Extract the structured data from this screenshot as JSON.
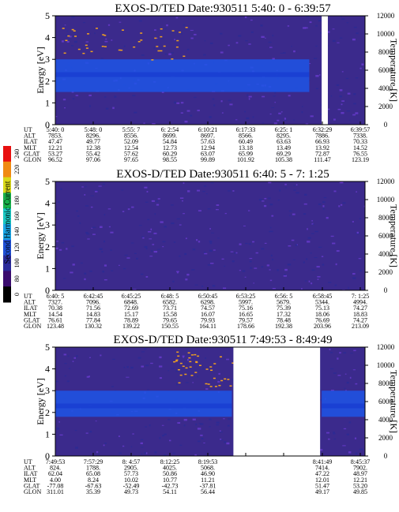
{
  "figure": {
    "colorbar": {
      "label": "Second Harmonic Current",
      "ticks": [
        "0",
        "80",
        "100",
        "120",
        "140",
        "160",
        "180",
        "200",
        "220",
        "240"
      ],
      "colors": [
        "#000000",
        "#3a0b6e",
        "#2a2a9a",
        "#1f4fd6",
        "#1aa8e8",
        "#19c7c2",
        "#18b04a",
        "#d9d919",
        "#f08a12",
        "#e81010"
      ]
    },
    "colors": {
      "background": "#3b2a8c",
      "band": "#1f55e6",
      "speckle": "#6a3ccf",
      "dots": "#f0a020"
    }
  },
  "chart_data": [
    {
      "type": "heatmap",
      "title": "EXOS-D/TED   Date:930511  5:40: 0 - 6:39:57",
      "ylabel": "Energy [eV]",
      "y2label": "Temperature [K]",
      "ylim": [
        0,
        5
      ],
      "y2lim": [
        0,
        12000
      ],
      "yticks": [
        "0",
        "1",
        "2",
        "3",
        "4",
        "5"
      ],
      "y2ticks": [
        "0",
        "2000",
        "4000",
        "6000",
        "8000",
        "10000",
        "12000"
      ],
      "band": {
        "segments": [
          [
            0,
            0.82
          ]
        ],
        "energy": [
          1.5,
          3.0
        ],
        "peak_energy": 2.3
      },
      "gaps": [
        [
          0.86,
          0.88
        ]
      ],
      "dots": {
        "x": [
          0.02,
          0.42
        ],
        "energy": [
          3.0,
          4.5
        ]
      },
      "rows": [
        {
          "label": "UT",
          "values": [
            "5:40: 0",
            "5:48: 0",
            "5:55: 7",
            "6: 2:54",
            "6:10:21",
            "6:17:33",
            "6:25: 1",
            "6:32:29",
            "6:39:57"
          ]
        },
        {
          "label": "ALT",
          "values": [
            "7853.",
            "8296.",
            "8556.",
            "8699.",
            "8697.",
            "8566.",
            "8295.",
            "7886.",
            "7338."
          ]
        },
        {
          "label": "ILAT",
          "values": [
            "47.47",
            "49.77",
            "52.09",
            "54.84",
            "57.63",
            "60.49",
            "63.63",
            "66.93",
            "70.33"
          ]
        },
        {
          "label": "MLT",
          "values": [
            "12.21",
            "12.38",
            "12.54",
            "12.73",
            "12.94",
            "13.18",
            "13.49",
            "13.92",
            "14.52"
          ]
        },
        {
          "label": "GLAT",
          "values": [
            "53.27",
            "55.42",
            "57.62",
            "60.29",
            "63.07",
            "65.99",
            "69.29",
            "72.87",
            "76.55"
          ]
        },
        {
          "label": "GLON",
          "values": [
            "96.52",
            "97.06",
            "97.65",
            "98.55",
            "99.89",
            "101.92",
            "105.38",
            "111.47",
            "123.19"
          ]
        }
      ]
    },
    {
      "type": "heatmap",
      "title": "EXOS-D/TED   Date:930511  6:40: 5 - 7: 1:25",
      "ylabel": "Energy [eV]",
      "y2label": "Temperature [K]",
      "ylim": [
        0,
        5
      ],
      "y2lim": [
        0,
        12000
      ],
      "yticks": [
        "0",
        "1",
        "2",
        "3",
        "4",
        "5"
      ],
      "y2ticks": [
        "0",
        "2000",
        "4000",
        "6000",
        "8000",
        "10000",
        "12000"
      ],
      "band": {
        "segments": [],
        "energy": [
          1.5,
          3.0
        ],
        "peak_energy": 2.3
      },
      "gaps": [],
      "dots": {
        "x": [
          0,
          0
        ],
        "energy": [
          0,
          0
        ]
      },
      "rows": [
        {
          "label": "UT",
          "values": [
            "6:40: 5",
            "6:42:45",
            "6:45:25",
            "6:48: 5",
            "6:50:45",
            "6:53:25",
            "6:56: 5",
            "6:58:45",
            "7: 1:25"
          ]
        },
        {
          "label": "ALT",
          "values": [
            "7327.",
            "7096.",
            "6848.",
            "6582.",
            "6298.",
            "5997.",
            "5679.",
            "5344.",
            "4994."
          ]
        },
        {
          "label": "ILAT",
          "values": [
            "70.38",
            "71.56",
            "72.69",
            "73.71",
            "74.57",
            "75.16",
            "75.39",
            "75.13",
            "74.27"
          ]
        },
        {
          "label": "MLT",
          "values": [
            "14.54",
            "14.83",
            "15.17",
            "15.58",
            "16.07",
            "16.65",
            "17.32",
            "18.06",
            "18.83"
          ]
        },
        {
          "label": "GLAT",
          "values": [
            "76.61",
            "77.84",
            "78.89",
            "79.65",
            "79.93",
            "79.57",
            "78.48",
            "76.69",
            "74.27"
          ]
        },
        {
          "label": "GLON",
          "values": [
            "123.48",
            "130.32",
            "139.22",
            "150.55",
            "164.11",
            "178.66",
            "192.38",
            "203.96",
            "213.09"
          ]
        }
      ]
    },
    {
      "type": "heatmap",
      "title": "EXOS-D/TED   Date:930511  7:49:53 - 8:49:49",
      "ylabel": "Energy [eV]",
      "y2label": "Temperature [K]",
      "ylim": [
        0,
        5
      ],
      "y2lim": [
        0,
        12000
      ],
      "yticks": [
        "0",
        "1",
        "2",
        "3",
        "4",
        "5"
      ],
      "y2ticks": [
        "0",
        "2000",
        "4000",
        "6000",
        "8000",
        "10000",
        "12000"
      ],
      "band": {
        "segments": [
          [
            0,
            0.57
          ],
          [
            0.86,
            1.0
          ]
        ],
        "energy": [
          1.8,
          3.0
        ],
        "peak_energy": 2.3
      },
      "gaps": [
        [
          0.575,
          0.855
        ]
      ],
      "dots": {
        "x": [
          0.38,
          0.57
        ],
        "energy": [
          3.2,
          4.8
        ]
      },
      "rows": [
        {
          "label": "UT",
          "values": [
            "7:49:53",
            "7:57:29",
            "8: 4:57",
            "8:12:25",
            "8:19:53",
            "",
            "",
            "8:41:49",
            "8:45:37"
          ]
        },
        {
          "label": "ALT",
          "values": [
            "824.",
            "1788.",
            "2905.",
            "4025.",
            "5068.",
            "",
            "",
            "7414.",
            "7902."
          ]
        },
        {
          "label": "ILAT",
          "values": [
            "62.04",
            "65.08",
            "57.73",
            "50.86",
            "46.90",
            "",
            "",
            "47.22",
            "48.97"
          ]
        },
        {
          "label": "MLT",
          "values": [
            "4.00",
            "8.24",
            "10.02",
            "10.77",
            "11.21",
            "",
            "",
            "12.01",
            "12.21"
          ]
        },
        {
          "label": "GLAT",
          "values": [
            "-77.08",
            "-67.63",
            "-52.49",
            "-42.73",
            "-37.81",
            "",
            "",
            "51.47",
            "53.20"
          ]
        },
        {
          "label": "GLON",
          "values": [
            "311.01",
            "35.39",
            "49.73",
            "54.11",
            "56.44",
            "",
            "",
            "49.17",
            "49.85"
          ]
        }
      ]
    }
  ]
}
